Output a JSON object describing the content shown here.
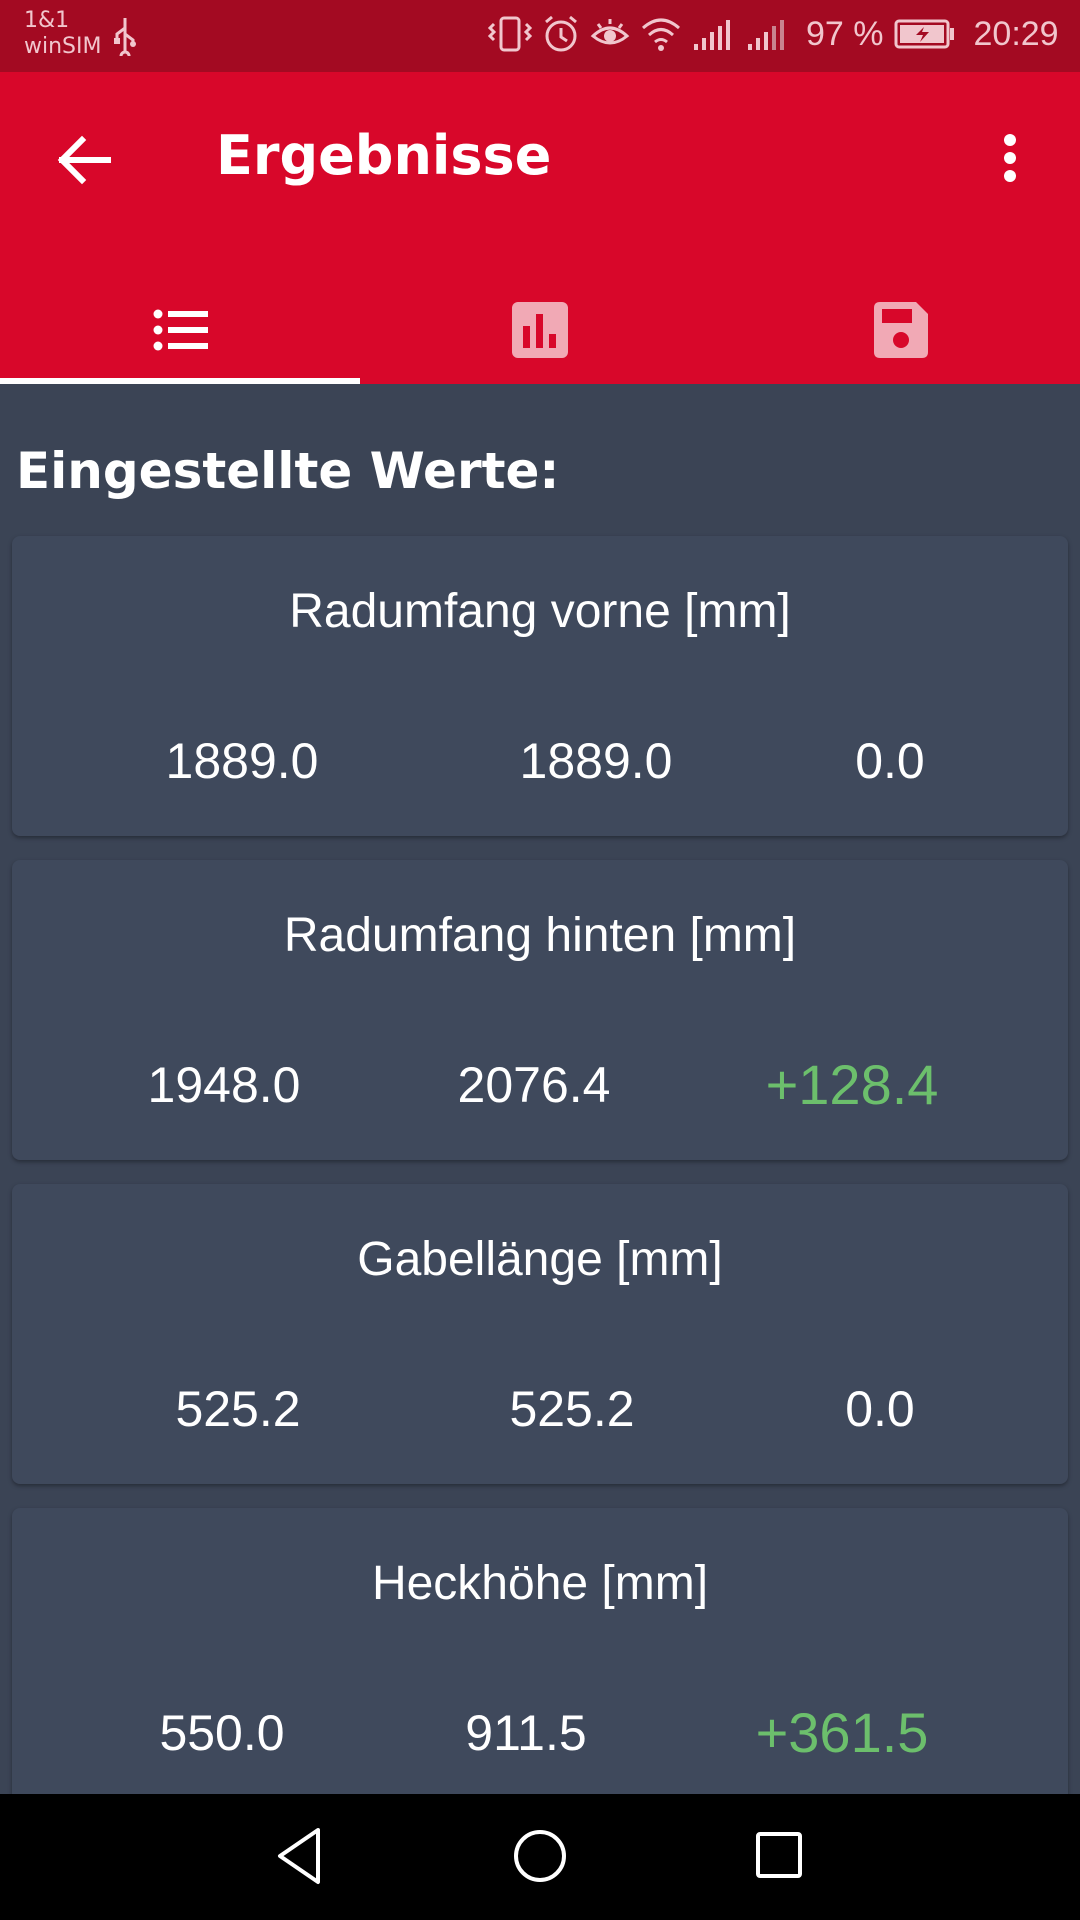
{
  "status_bar": {
    "carrier_line1": "1&1",
    "carrier_line2": "winSIM",
    "battery": "97 %",
    "time": "20:29"
  },
  "app_bar": {
    "title": "Ergebnisse",
    "tabs": [
      {
        "name": "list",
        "icon": "list-icon",
        "selected": true
      },
      {
        "name": "chart",
        "icon": "bar-chart-icon",
        "selected": false
      },
      {
        "name": "save",
        "icon": "save-icon",
        "selected": false
      }
    ]
  },
  "content": {
    "heading": "Eingestellte Werte:",
    "cards": [
      {
        "title": "Radumfang vorne [mm]",
        "old": "1889.0",
        "new": "1889.0",
        "delta": "0.0",
        "delta_positive": false
      },
      {
        "title": "Radumfang hinten [mm]",
        "old": "1948.0",
        "new": "2076.4",
        "delta": "+128.4",
        "delta_positive": true
      },
      {
        "title": "Gabellänge [mm]",
        "old": "525.2",
        "new": "525.2",
        "delta": "0.0",
        "delta_positive": false
      },
      {
        "title": "Heckhöhe [mm]",
        "old": "550.0",
        "new": "911.5",
        "delta": "+361.5",
        "delta_positive": true
      }
    ]
  },
  "colors": {
    "status_bar": "#a30a22",
    "app_bar": "#d8072a",
    "background": "#3b4455",
    "card": "#3f495c",
    "delta_positive": "#6cbf6c"
  }
}
